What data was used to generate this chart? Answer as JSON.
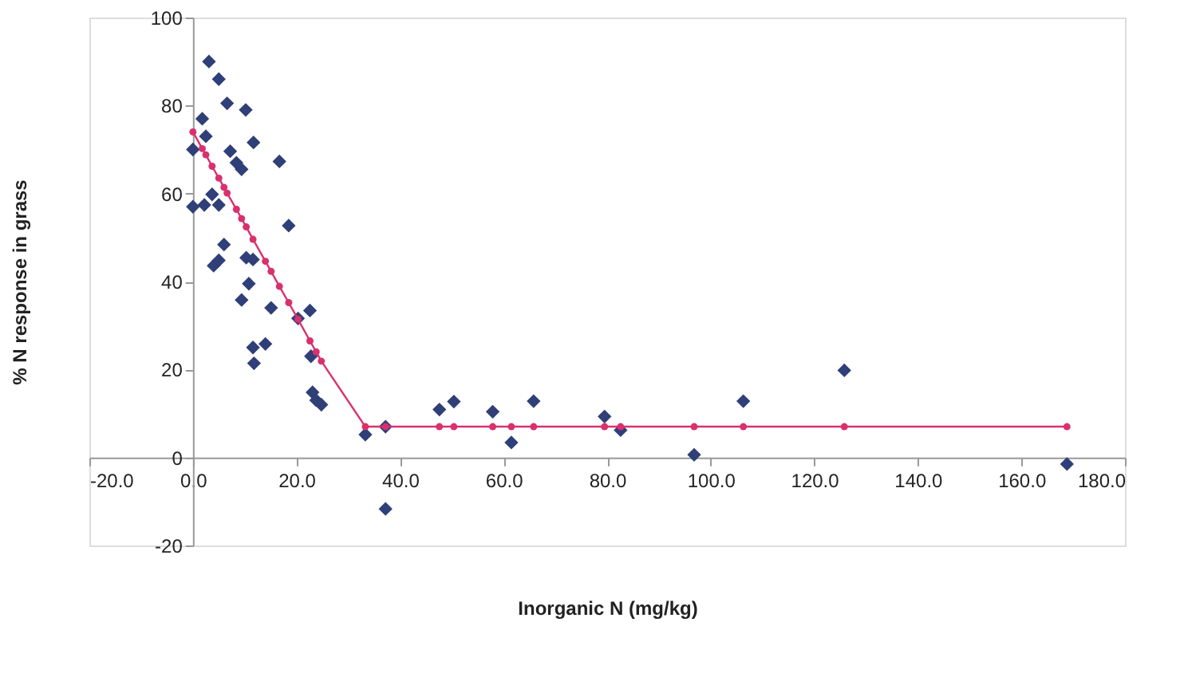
{
  "chart_data": {
    "type": "scatter",
    "xlabel": "Inorganic N (mg/kg)",
    "ylabel": "% N response in grass",
    "xlim": [
      -20,
      180
    ],
    "ylim": [
      -20,
      100
    ],
    "xticks": [
      {
        "value": -20,
        "label": "-20.0"
      },
      {
        "value": 0,
        "label": "0.0"
      },
      {
        "value": 20,
        "label": "20.0"
      },
      {
        "value": 40,
        "label": "40.0"
      },
      {
        "value": 60,
        "label": "60.0"
      },
      {
        "value": 80,
        "label": "80.0"
      },
      {
        "value": 100,
        "label": "100.0"
      },
      {
        "value": 120,
        "label": "120.0"
      },
      {
        "value": 140,
        "label": "140.0"
      },
      {
        "value": 160,
        "label": "160.0"
      },
      {
        "value": 180,
        "label": "180.0"
      }
    ],
    "yticks": [
      -20,
      0,
      20,
      40,
      60,
      80,
      100
    ],
    "grid": false,
    "series": [
      {
        "marker": "diamond",
        "color": "#2f3f78",
        "x": [
          0,
          0,
          1.8,
          2.5,
          3.1,
          5,
          6.6,
          10.2,
          11.7,
          16.7,
          7.2,
          8.4,
          9.4,
          3.7,
          2.2,
          5,
          6,
          5,
          4,
          10.3,
          11.6,
          10.8,
          9.4,
          15.1,
          18.5,
          20.3,
          22.6,
          11.6,
          14,
          11.8,
          22.8,
          23.1,
          23.8,
          24.8,
          33.3,
          37.2,
          37.2,
          47.6,
          50.4,
          57.9,
          61.5,
          65.8,
          79.5,
          82.6,
          96.8,
          106.3,
          125.8,
          168.8
        ],
        "values": [
          57,
          70,
          77,
          73,
          90,
          86,
          80.5,
          79,
          71.6,
          67.3,
          69.6,
          67,
          65.5,
          59.8,
          57.4,
          57.4,
          48.4,
          44.8,
          43.6,
          45.4,
          45,
          39.5,
          35.8,
          34,
          52.7,
          31.6,
          33.4,
          25,
          25.8,
          21.4,
          23,
          14.8,
          13,
          12,
          5.2,
          7,
          -11.7,
          10.9,
          12.7,
          10.4,
          3.4,
          12.8,
          9.3,
          6.2,
          0.6,
          12.8,
          19.8,
          -1.5
        ]
      },
      {
        "type": "line",
        "marker": "circle",
        "color": "#d9306e",
        "x": [
          0,
          1.8,
          2.5,
          3.7,
          5,
          6,
          6.6,
          8.4,
          9.4,
          10.3,
          11.6,
          14,
          15.1,
          16.7,
          18.5,
          20.3,
          22.6,
          23.8,
          24.8,
          33.3,
          37.2,
          47.6,
          50.4,
          57.9,
          61.5,
          65.8,
          79.5,
          82.6,
          96.8,
          106.3,
          125.8,
          168.8
        ],
        "values": [
          74,
          70.2,
          68.8,
          66.2,
          63.5,
          61.4,
          60.1,
          56.4,
          54.3,
          52.4,
          49.6,
          44.6,
          42.3,
          38.9,
          35.2,
          31.4,
          26.5,
          24,
          21.9,
          7,
          7,
          7,
          7,
          7,
          7,
          7,
          7,
          7,
          7,
          7,
          7,
          7
        ]
      }
    ]
  }
}
